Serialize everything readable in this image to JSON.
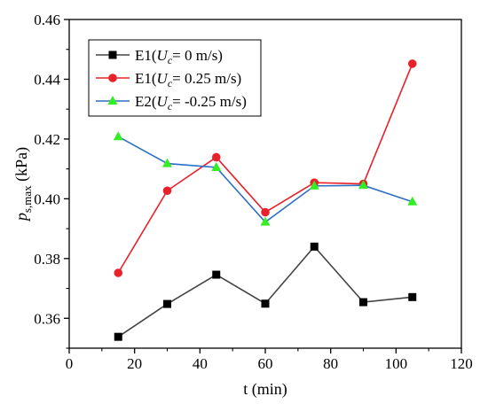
{
  "chart_data": {
    "type": "line",
    "xlabel": "t (min)",
    "ylabel_main": "p",
    "ylabel_sub": "s,max",
    "ylabel_unit": " (kPa)",
    "xlim": [
      0,
      120
    ],
    "ylim": [
      0.35,
      0.46
    ],
    "x_ticks": [
      0,
      20,
      40,
      60,
      80,
      100,
      120
    ],
    "y_ticks": [
      0.36,
      0.38,
      0.4,
      0.42,
      0.44,
      0.46
    ],
    "grid": false,
    "legend_position": "top-left",
    "series": [
      {
        "name": "E1(Uc= 0 m/s)",
        "legend_prefix": "E1(",
        "legend_var": "U",
        "legend_sub": "c",
        "legend_suffix": "= 0 m/s)",
        "color": "#000000",
        "line_color": "#444444",
        "marker": "square",
        "x": [
          15,
          30,
          45,
          60,
          75,
          90,
          105
        ],
        "values": [
          0.3538,
          0.3648,
          0.3746,
          0.3649,
          0.384,
          0.3654,
          0.3671
        ]
      },
      {
        "name": "E1(Uc= 0.25 m/s)",
        "legend_prefix": "E1(",
        "legend_var": "U",
        "legend_sub": "c",
        "legend_suffix": "= 0.25 m/s)",
        "color": "#e8212a",
        "line_color": "#e8212a",
        "marker": "circle",
        "x": [
          15,
          30,
          45,
          60,
          75,
          90,
          105
        ],
        "values": [
          0.3752,
          0.4027,
          0.4139,
          0.3955,
          0.4054,
          0.405,
          0.4452
        ]
      },
      {
        "name": "E2(Uc= -0.25 m/s)",
        "legend_prefix": "E2(",
        "legend_var": "U",
        "legend_sub": "c",
        "legend_suffix": "= -0.25 m/s)",
        "color": "#33ee22",
        "line_color": "#2e6fc4",
        "marker": "triangle",
        "x": [
          15,
          30,
          45,
          60,
          75,
          90,
          105
        ],
        "values": [
          0.4208,
          0.4118,
          0.4105,
          0.3922,
          0.4043,
          0.4045,
          0.399
        ]
      }
    ]
  }
}
